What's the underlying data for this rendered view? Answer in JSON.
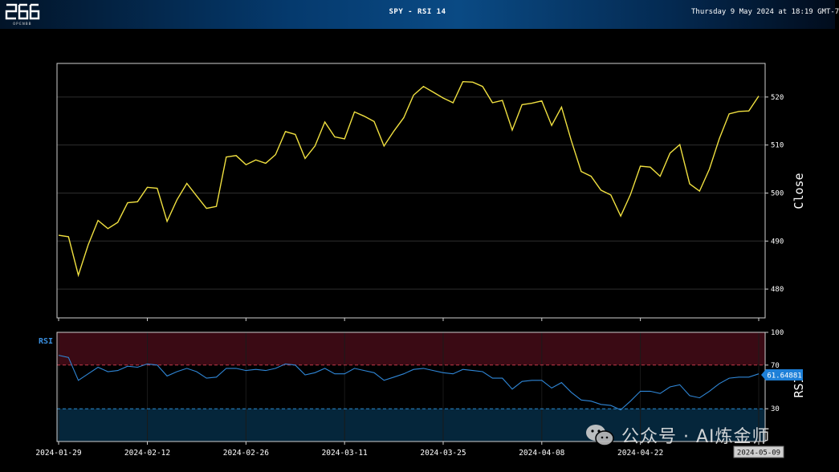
{
  "header": {
    "logo_text": "OPENBB",
    "title": "SPY - RSI 14",
    "timestamp": "Thursday 9 May 2024 at 18:19 GMT-7"
  },
  "colors": {
    "price_line": "#f0e040",
    "rsi_line": "#2f86d6",
    "overbought_fill": "#3a0a14",
    "oversold_fill": "#05263b",
    "overbought_line": "#c23a4a",
    "oversold_line": "#2d8ad0",
    "grid": "#2e2e2e",
    "frame": "#cfcfcf"
  },
  "watermark": {
    "text": "公众号 · AI炼金师"
  },
  "chart_data": [
    {
      "type": "line",
      "title": "SPY - RSI 14",
      "ylabel": "Close",
      "ylim": [
        474,
        527
      ],
      "yticks": [
        480,
        490,
        500,
        510,
        520
      ],
      "ytick_labels": [
        "480",
        "490",
        "500",
        "510",
        "520"
      ],
      "xtick_labels": [
        "2024-01-29",
        "2024-02-12",
        "2024-02-26",
        "2024-03-11",
        "2024-03-25",
        "2024-04-08",
        "2024-04-22",
        "2024-05-09"
      ],
      "series": [
        {
          "name": "Close",
          "values": [
            491.2,
            490.9,
            482.9,
            489.2,
            494.3,
            492.6,
            493.9,
            498.0,
            498.2,
            501.2,
            501.0,
            494.1,
            498.6,
            502.0,
            499.4,
            496.8,
            497.2,
            507.5,
            507.8,
            505.9,
            506.9,
            506.2,
            508.0,
            512.8,
            512.2,
            507.2,
            509.8,
            514.8,
            511.7,
            511.3,
            516.9,
            516.0,
            514.9,
            509.8,
            512.9,
            515.7,
            520.4,
            522.2,
            521.0,
            519.8,
            518.8,
            523.2,
            523.1,
            522.2,
            518.8,
            519.3,
            513.1,
            518.4,
            518.7,
            519.2,
            514.1,
            517.9,
            510.9,
            504.5,
            503.5,
            500.6,
            499.6,
            495.2,
            499.7,
            505.6,
            505.4,
            503.5,
            508.3,
            510.1,
            501.9,
            500.4,
            505.0,
            511.3,
            516.5,
            517.0,
            517.1,
            520.2
          ]
        }
      ]
    },
    {
      "type": "line",
      "title": "RSI",
      "ylabel": "RSI",
      "ylim": [
        0,
        100
      ],
      "yticks": [
        30,
        70,
        100
      ],
      "ytick_labels": [
        "30",
        "70",
        "100"
      ],
      "overbought": 70,
      "oversold": 30,
      "last_value_label": "61.64881",
      "last_date_label": "2024-05-09",
      "series": [
        {
          "name": "RSI",
          "values": [
            79,
            77,
            56,
            62,
            68,
            64,
            65,
            69,
            68,
            71,
            70,
            60,
            64,
            67,
            64,
            58,
            59,
            67,
            67,
            65,
            66,
            65,
            67,
            71,
            70,
            61,
            63,
            67,
            62,
            62,
            67,
            65,
            63,
            56,
            59,
            62,
            66,
            67,
            65,
            63,
            62,
            66,
            65,
            64,
            58,
            58,
            48,
            55,
            56,
            56,
            49,
            54,
            45,
            38,
            37,
            34,
            33,
            29,
            37,
            46,
            46,
            44,
            50,
            52,
            42,
            40,
            46,
            53,
            58,
            59,
            59,
            62
          ]
        }
      ]
    }
  ]
}
